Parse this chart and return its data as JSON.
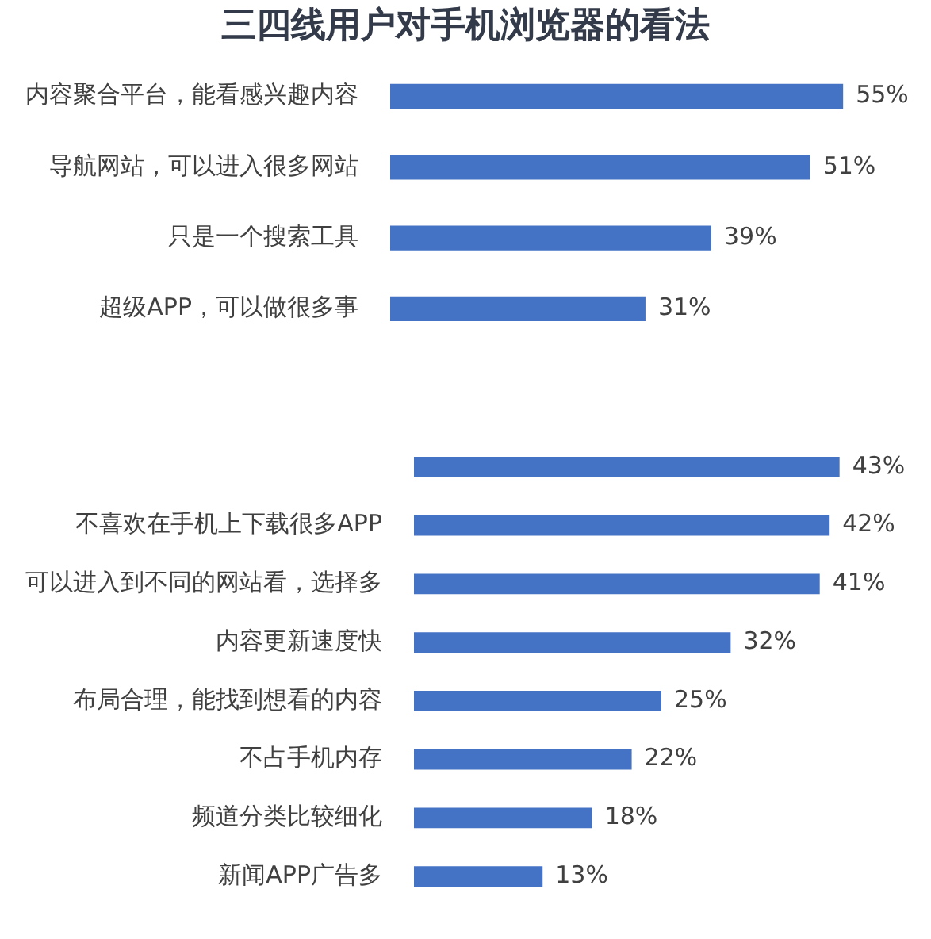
{
  "chart_data": [
    {
      "type": "bar",
      "orientation": "horizontal",
      "title": "三四线用户对手机浏览器的看法",
      "categories": [
        "内容聚合平台，能看感兴趣内容",
        "导航网站，可以进入很多网站",
        "只是一个搜索工具",
        "超级APP，可以做很多事"
      ],
      "values": [
        55,
        51,
        39,
        31
      ],
      "color": "#4472c4",
      "value_labels": [
        "55%",
        "51%",
        "39%",
        "31%"
      ]
    },
    {
      "type": "bar",
      "orientation": "horizontal",
      "categories": [
        null,
        "不喜欢在手机上下载很多APP",
        "可以进入到不同的网站看，选择多",
        "内容更新速度快",
        "布局合理，能找到想看的内容",
        "不占手机内存",
        "频道分类比较细化",
        "新闻APP广告多"
      ],
      "values": [
        43,
        42,
        41,
        32,
        25,
        22,
        18,
        13
      ],
      "color": "#4472c4",
      "value_labels": [
        "43%",
        "42%",
        "41%",
        "32%",
        "25%",
        "22%",
        "18%",
        "13%"
      ]
    }
  ]
}
